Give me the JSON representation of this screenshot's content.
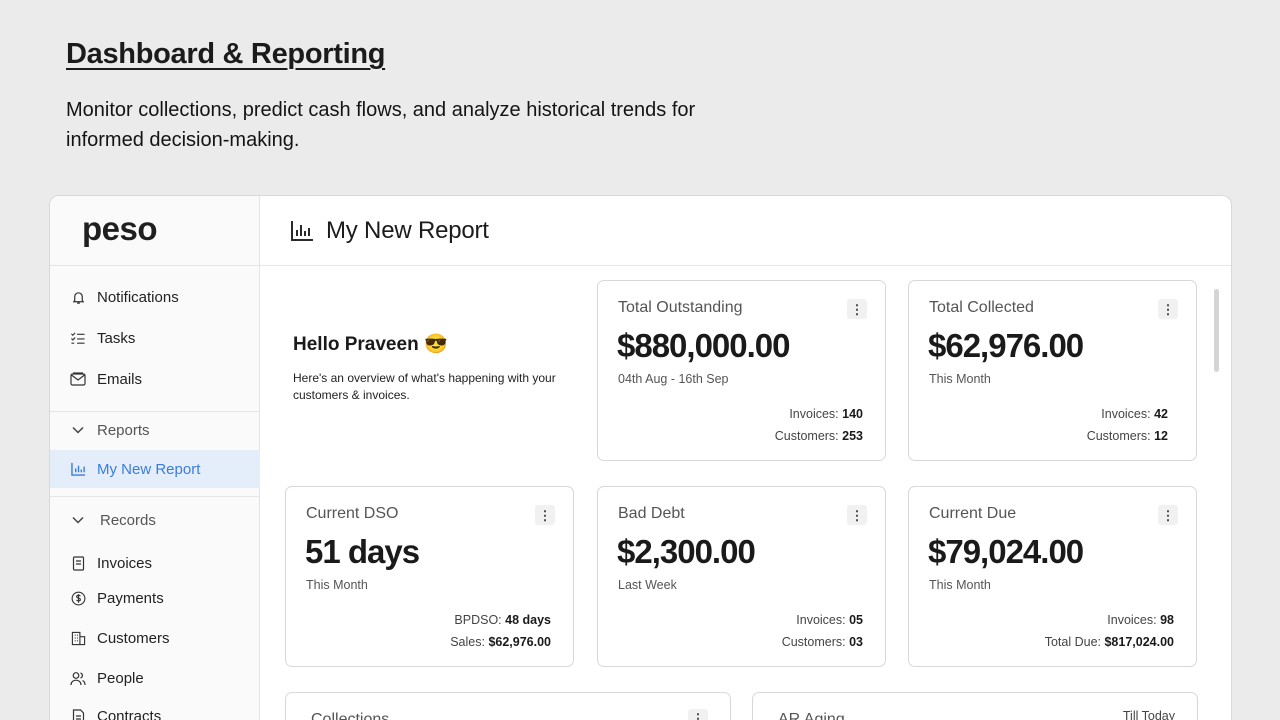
{
  "hero": {
    "title": "Dashboard & Reporting",
    "subtitle": "Monitor collections, predict cash flows, and analyze historical trends for informed decision-making."
  },
  "app": {
    "logo": "peso",
    "sidebar": {
      "items": [
        {
          "label": "Notifications",
          "icon": "bell-icon"
        },
        {
          "label": "Tasks",
          "icon": "checklist-icon"
        },
        {
          "label": "Emails",
          "icon": "mail-icon"
        }
      ],
      "reports_section": {
        "label": "Reports",
        "icon": "chevron-down-icon"
      },
      "active_report": {
        "label": "My New Report",
        "icon": "bar-chart-icon"
      },
      "records_section": {
        "label": "Records",
        "icon": "chevron-down-icon"
      },
      "records": [
        {
          "label": "Invoices",
          "icon": "invoice-icon"
        },
        {
          "label": "Payments",
          "icon": "dollar-circle-icon"
        },
        {
          "label": "Customers",
          "icon": "building-icon"
        },
        {
          "label": "People",
          "icon": "people-icon"
        },
        {
          "label": "Contracts",
          "icon": "contract-icon"
        }
      ]
    },
    "header": {
      "title": "My New Report",
      "icon": "bar-chart-icon"
    },
    "greeting": {
      "title": "Hello Praveen 😎",
      "text": "Here's an overview of what's happening with your customers & invoices."
    },
    "cards": [
      {
        "label": "Total Outstanding",
        "value": "$880,000.00",
        "period": "04th Aug - 16th Sep",
        "s1_label": "Invoices: ",
        "s1_value": "140",
        "s2_label": "Customers: ",
        "s2_value": "253"
      },
      {
        "label": "Total Collected",
        "value": "$62,976.00",
        "period": "This Month",
        "s1_label": "Invoices: ",
        "s1_value": "42",
        "s2_label": "Customers: ",
        "s2_value": "12"
      },
      {
        "label": "Current DSO",
        "value": "51 days",
        "period": "This Month",
        "s1_label": "BPDSO: ",
        "s1_value": "48 days",
        "s2_label": "Sales: ",
        "s2_value": "$62,976.00"
      },
      {
        "label": "Bad Debt",
        "value": "$2,300.00",
        "period": "Last Week",
        "s1_label": "Invoices: ",
        "s1_value": "05",
        "s2_label": "Customers: ",
        "s2_value": "03"
      },
      {
        "label": "Current Due",
        "value": "$79,024.00",
        "period": "This Month",
        "s1_label": "Invoices: ",
        "s1_value": "98",
        "s2_label": "Total Due: ",
        "s2_value": "$817,024.00"
      }
    ],
    "bottom": [
      {
        "label": "Collections"
      },
      {
        "label": "AR Aging",
        "right": "Till Today"
      }
    ],
    "colors": {
      "accent": "#3b7ddd",
      "active_bg": "#e4edfa",
      "page_bg": "#ecebeb"
    }
  }
}
